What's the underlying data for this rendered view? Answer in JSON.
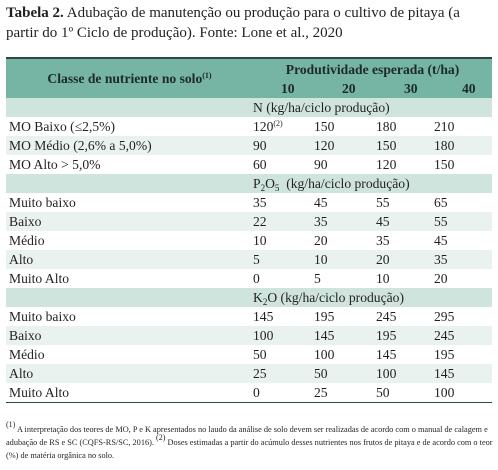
{
  "caption": {
    "label": "Tabela 2.",
    "text": "Adubação de manutenção ou produção para o cultivo de pitaya (a partir do 1º Ciclo de produção). Fonte: Lone et al., 2020"
  },
  "header": {
    "class_label": "Classe de nutriente no solo",
    "class_sup": "(1)",
    "prod_label": "Produtividade esperada (t/ha)",
    "levels": [
      "10",
      "20",
      "30",
      "40"
    ]
  },
  "sections": [
    {
      "title_main": "N (kg/ha/ciclo produção)",
      "rows": [
        {
          "label": "MO Baixo (≤2,5%)",
          "values": [
            "120",
            "150",
            "180",
            "210"
          ],
          "sup": "(2)"
        },
        {
          "label": "MO Médio (2,6% a 5,0%)",
          "values": [
            "90",
            "120",
            "150",
            "180"
          ]
        },
        {
          "label": "MO Alto > 5,0%",
          "values": [
            "60",
            "90",
            "120",
            "150"
          ]
        }
      ]
    },
    {
      "title_pre": "P",
      "title_sub": "2",
      "title_mid": "O",
      "title_sub2": "5",
      "title_post": "  (kg/ha/ciclo produção)",
      "rows": [
        {
          "label": "Muito baixo",
          "values": [
            "35",
            "45",
            "55",
            "65"
          ]
        },
        {
          "label": "Baixo",
          "values": [
            "22",
            "35",
            "45",
            "55"
          ]
        },
        {
          "label": "Médio",
          "values": [
            "10",
            "20",
            "35",
            "45"
          ]
        },
        {
          "label": "Alto",
          "values": [
            "5",
            "10",
            "20",
            "35"
          ]
        },
        {
          "label": "Muito Alto",
          "values": [
            "0",
            "5",
            "10",
            "20"
          ]
        }
      ]
    },
    {
      "title_pre": "K",
      "title_sub": "2",
      "title_mid": "O (kg/ha/ciclo produção)",
      "rows": [
        {
          "label": "Muito baixo",
          "values": [
            "145",
            "195",
            "245",
            "295"
          ]
        },
        {
          "label": "Baixo",
          "values": [
            "100",
            "145",
            "195",
            "245"
          ]
        },
        {
          "label": "Médio",
          "values": [
            "50",
            "100",
            "145",
            "195"
          ]
        },
        {
          "label": "Alto",
          "values": [
            "25",
            "50",
            "100",
            "145"
          ]
        },
        {
          "label": "Muito Alto",
          "values": [
            "0",
            "25",
            "50",
            "100"
          ]
        }
      ]
    }
  ],
  "footnote": {
    "sup1": "(1)",
    "text1": " A interpretação dos teores de MO, P e K apresentados no laudo da análise de solo devem ser realizadas de acordo com o manual de calagem e adubação de RS e SC (CQFS-RS/SC, 2016). ",
    "sup2": "(2)",
    "text2": " Doses estimadas a partir do acúmulo desses nutrientes nos frutos de pitaya e de acordo com o teor (%) de matéria orgânica no solo."
  }
}
